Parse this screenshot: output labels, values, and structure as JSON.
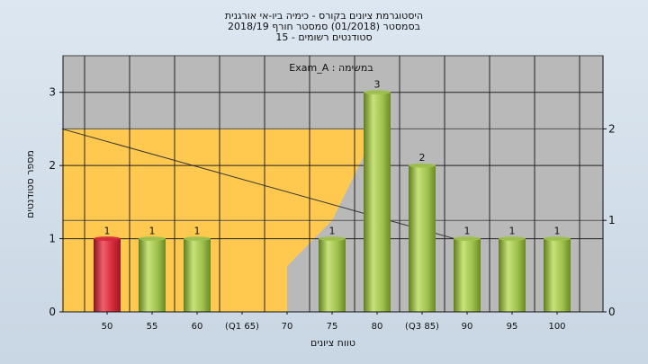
{
  "titles": [
    "היסטוגרמת ציונים בקורס - כימיה ביו-אי אורגנית",
    "בסמסטר  (01/2018)  סמסטר חורף 2018/19",
    "סטודנטים רשומים - 15"
  ],
  "chart_data": {
    "type": "bar",
    "title": "היסטוגרמת ציונים בקורס - כימיה ביו-אי אורגנית",
    "subtitle": "בסמסטר  (01/2018)  סמסטר חורף 2018/19",
    "annotation": "Exam_A : במשימה",
    "xlabel": "טווח ציונים",
    "ylabel": "מספר סטודנטים",
    "ylim": [
      0,
      3.5
    ],
    "y_ticks": [
      0,
      1,
      2,
      3
    ],
    "y2_ticks": [
      0,
      1,
      2
    ],
    "y2lim": [
      0,
      2.8
    ],
    "grid": true,
    "categories": [
      "50",
      "55",
      "60",
      "(Q1 65)",
      "70",
      "75",
      "80",
      "(Q3 85)",
      "90",
      "95",
      "100"
    ],
    "values": [
      1,
      1,
      1,
      0,
      0,
      1,
      3,
      2,
      1,
      1,
      1
    ],
    "bar_labels": [
      "1",
      "1",
      "1",
      "",
      "",
      "1",
      "3",
      "2",
      "1",
      "1",
      "1"
    ],
    "bar_colors": [
      "#d6293a",
      "#9fc14d",
      "#9fc14d",
      "",
      "",
      "#9fc14d",
      "#9fc14d",
      "#9fc14d",
      "#9fc14d",
      "#9fc14d",
      "#9fc14d"
    ],
    "box_area": {
      "lower_whisker_range": [
        "60",
        "70"
      ],
      "whisker_value": 0.5,
      "quartile_range": [
        "70",
        "85"
      ],
      "median_category": "80",
      "max_value": 2.0
    },
    "colors": {
      "plot_bg": "#b9b9b9",
      "iqr": "#ffc94f",
      "whisker": "#c8c8c8",
      "low_bar": "#d6293a",
      "bar": "#9fc14d"
    }
  }
}
